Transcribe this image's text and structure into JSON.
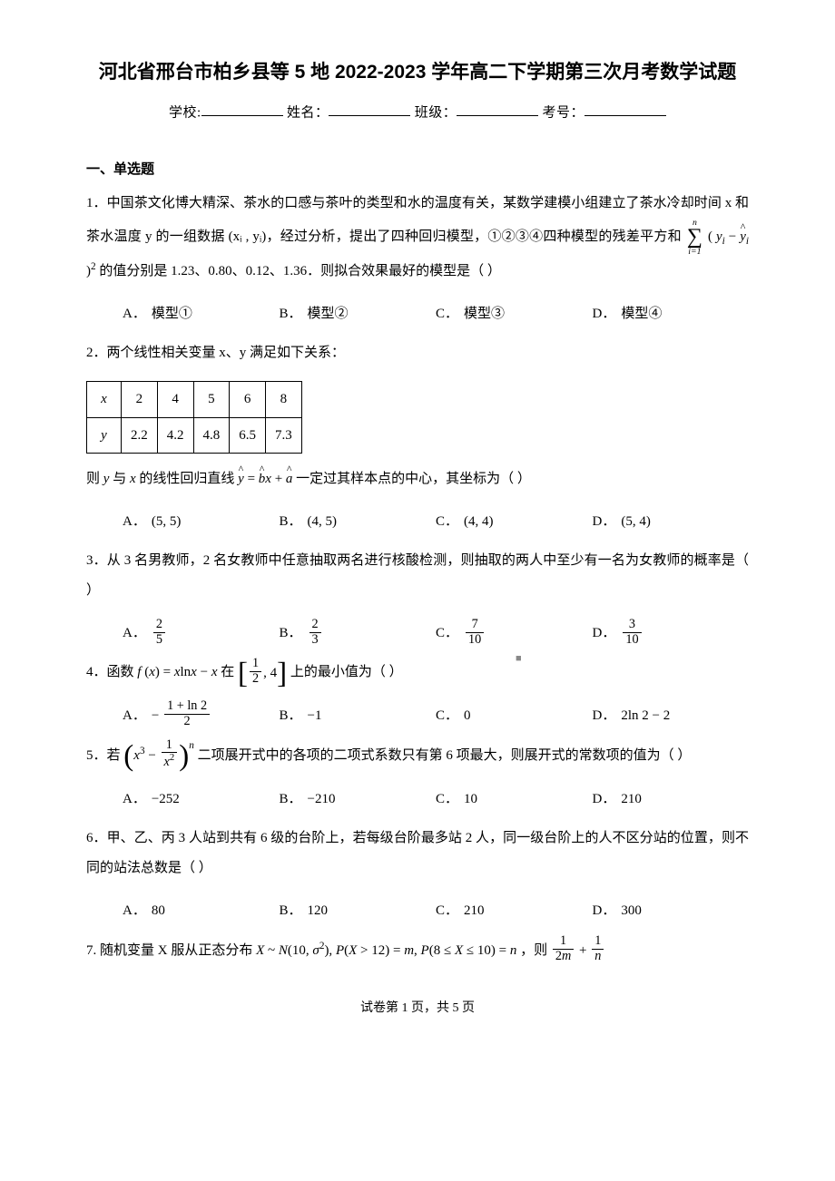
{
  "title": "河北省邢台市柏乡县等 5 地 2022-2023 学年高二下学期第三次月考数学试题",
  "meta": {
    "school_label": "学校:",
    "name_label": "姓名：",
    "class_label": "班级：",
    "exam_no_label": "考号："
  },
  "section1_heading": "一、单选题",
  "q1": {
    "text_before_sum": "1．中国茶文化博大精深、茶水的口感与茶叶的类型和水的温度有关，某数学建模小组建立了茶水冷却时间 x 和茶水温度 y 的一组数据 (xᵢ , yᵢ)，经过分析，提出了四种回归模型，①②③④四种模型的残差平方和 ",
    "sum_top": "n",
    "sum_bot": "i=1",
    "sum_inner": "( yᵢ − ŷᵢ )²",
    "text_after_sum": " 的值分别是 1.23、0.80、0.12、1.36．则拟合效果最好的模型是（    ）",
    "opts": [
      "模型①",
      "模型②",
      "模型③",
      "模型④"
    ]
  },
  "q2": {
    "stem": "2．两个线性相关变量 x、y 满足如下关系：",
    "table": {
      "row_labels": [
        "x",
        "y"
      ],
      "x": [
        "2",
        "4",
        "5",
        "6",
        "8"
      ],
      "y": [
        "2.2",
        "4.2",
        "4.8",
        "6.5",
        "7.3"
      ]
    },
    "tail": "则 y 与 x 的线性回归直线 ŷ = b̂x + â 一定过其样本点的中心，其坐标为（    ）",
    "opts": [
      "(5, 5)",
      "(4, 5)",
      "(4, 4)",
      "(5, 4)"
    ]
  },
  "q3": {
    "stem": "3．从 3 名男教师，2 名女教师中任意抽取两名进行核酸检测，则抽取的两人中至少有一名为女教师的概率是（    ）",
    "opts_frac": [
      {
        "num": "2",
        "den": "5"
      },
      {
        "num": "2",
        "den": "3"
      },
      {
        "num": "7",
        "den": "10"
      },
      {
        "num": "3",
        "den": "10"
      }
    ]
  },
  "q4": {
    "stem_before": "4．函数 ",
    "func": "f (x) = x ln x − x",
    "stem_mid": " 在 ",
    "interval_num": "1",
    "interval_den": "2",
    "interval_right": ", 4",
    "stem_after": " 上的最小值为（    ）",
    "optA_prefix": "− ",
    "optA_num": "1 + ln 2",
    "optA_den": "2",
    "optB": "−1",
    "optC": "0",
    "optD": "2ln 2 − 2"
  },
  "q5": {
    "stem_before": "5．若 ",
    "expr_inner_left": "x",
    "expr_sup1": "3",
    "expr_minus": " − ",
    "expr_frac_num": "1",
    "expr_frac_den_base": "x",
    "expr_frac_den_sup": "2",
    "expr_outer_sup": "n",
    "stem_after": " 二项展开式中的各项的二项式系数只有第 6 项最大，则展开式的常数项的值为（    ）",
    "opts": [
      "−252",
      "−210",
      "10",
      "210"
    ]
  },
  "q6": {
    "stem": "6．甲、乙、丙 3 人站到共有 6 级的台阶上，若每级台阶最多站 2 人，同一级台阶上的人不区分站的位置，则不同的站法总数是（    ）",
    "opts": [
      "80",
      "120",
      "210",
      "300"
    ]
  },
  "q7": {
    "stem_before": "7. 随机变量 X 服从正态分布 ",
    "dist": "X ~ N(10, σ²), P(X > 12) = m, P(8 ≤ X ≤ 10) = n",
    "stem_mid": "，则 ",
    "frac1_num": "1",
    "frac1_den": "2m",
    "plus": " + ",
    "frac2_num": "1",
    "frac2_den": "n"
  },
  "opt_labels": [
    "A．",
    "B．",
    "C．",
    "D．"
  ],
  "footer": "试卷第 1 页，共 5 页",
  "watermark": "■"
}
